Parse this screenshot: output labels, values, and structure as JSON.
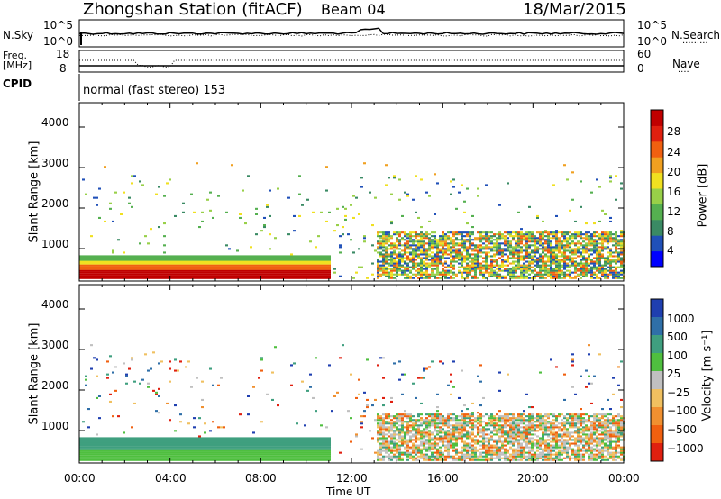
{
  "header": {
    "station": "Zhongshan Station (fitACF)",
    "beam": "Beam 04",
    "date": "18/Mar/2015"
  },
  "top_panels": {
    "nsky_label": "N.Sky",
    "nsky_ticks": [
      "10^5",
      "10^0"
    ],
    "nsearch_label": "N.Search",
    "nsearch_ticks": [
      "10^5",
      "10^0"
    ],
    "freq_label_line1": "Freq.",
    "freq_label_line2": "[MHz]",
    "freq_ticks": [
      "18",
      "8"
    ],
    "nave_label": "Nave",
    "nave_ticks": [
      "60",
      "0"
    ],
    "cpid_label": "CPID",
    "cpid_text": "normal (fast stereo) 153"
  },
  "chart_data": [
    {
      "type": "heatmap",
      "name": "power-panel",
      "ylabel": "Slant Range [km]",
      "yticks": [
        "1000",
        "2000",
        "3000",
        "4000"
      ],
      "ylim": [
        200,
        4600
      ],
      "xlim_hours": [
        0,
        24
      ],
      "colorbar": {
        "label": "Power [dB]",
        "ticks": [
          "4",
          "8",
          "12",
          "16",
          "20",
          "24",
          "28"
        ],
        "range": [
          0,
          32
        ],
        "colors": [
          "#0000ff",
          "#2050b8",
          "#3a8a64",
          "#55b050",
          "#98d048",
          "#f0e020",
          "#f0a020",
          "#f06010",
          "#e02010",
          "#c00000"
        ]
      },
      "summary": "Strong near-range power (~24-30 dB) below ~800 km from 00:00 to 11:00 UT; patchy weaker echoes (4-16 dB) 400-2700 km, widespread band 400-1400 km after 13:00 UT."
    },
    {
      "type": "heatmap",
      "name": "velocity-panel",
      "ylabel": "Slant Range [km]",
      "yticks": [
        "1000",
        "2000",
        "3000",
        "4000"
      ],
      "ylim": [
        200,
        4600
      ],
      "xlim_hours": [
        0,
        24
      ],
      "colorbar": {
        "label": "Velocity [m s⁻¹]",
        "ticks": [
          "1000",
          "500",
          "100",
          "25",
          "−25",
          "−100",
          "−500",
          "−1000"
        ],
        "colors": [
          "#1f3fb0",
          "#2f6fa8",
          "#3f9f7f",
          "#4fbf3f",
          "#c0c0c0",
          "#f0c060",
          "#f09030",
          "#f06010",
          "#e02010"
        ]
      },
      "summary": "Green (positive ~100-500 m/s) echoes below ~800 km before 11:00 UT; blue patches near 1000-2000 km around 06:00; grey/orange mixed velocities after 13:00 UT."
    }
  ],
  "x_axis": {
    "ticks": [
      "00:00",
      "04:00",
      "08:00",
      "12:00",
      "16:00",
      "20:00",
      "00:00"
    ],
    "label": "Time UT"
  }
}
